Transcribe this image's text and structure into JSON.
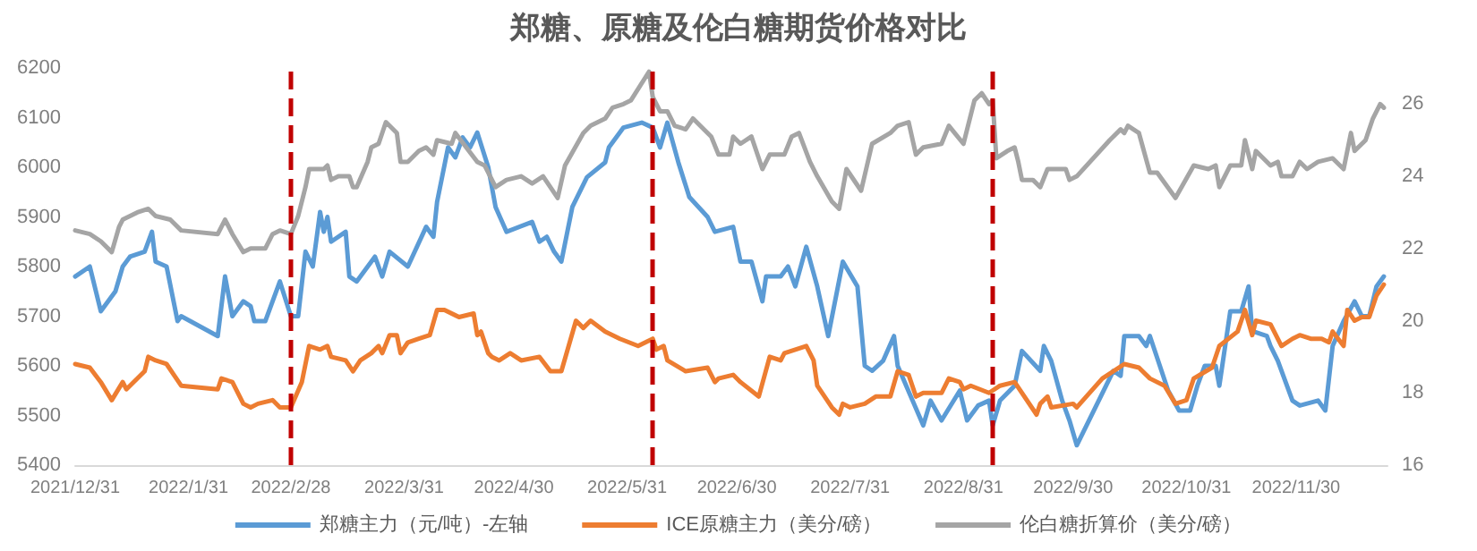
{
  "chart_data": {
    "type": "line",
    "title": "郑糖、原糖及伦白糖期货价格对比",
    "legend": "bottom",
    "line_style": "solid",
    "marker": "none",
    "xlim": [
      "2021-12-31",
      "2022-12-25"
    ],
    "xticks": [
      {
        "value": "2021-12-31",
        "label": "2021/12/31"
      },
      {
        "value": "2022-01-31",
        "label": "2022/1/31"
      },
      {
        "value": "2022-02-28",
        "label": "2022/2/28"
      },
      {
        "value": "2022-03-31",
        "label": "2022/3/31"
      },
      {
        "value": "2022-04-30",
        "label": "2022/4/30"
      },
      {
        "value": "2022-05-31",
        "label": "2022/5/31"
      },
      {
        "value": "2022-06-30",
        "label": "2022/6/30"
      },
      {
        "value": "2022-07-31",
        "label": "2022/7/31"
      },
      {
        "value": "2022-08-31",
        "label": "2022/8/31"
      },
      {
        "value": "2022-09-30",
        "label": "2022/9/30"
      },
      {
        "value": "2022-10-31",
        "label": "2022/10/31"
      },
      {
        "value": "2022-11-30",
        "label": "2022/11/30"
      }
    ],
    "ylim": [
      5400,
      6200
    ],
    "yticks": [
      5400,
      5500,
      5600,
      5700,
      5800,
      5900,
      6000,
      6100,
      6200
    ],
    "y2lim": [
      16,
      27
    ],
    "y2ticks": [
      16,
      18,
      20,
      22,
      24,
      26
    ],
    "ref_lines": [
      {
        "axis": "x",
        "value": "2022-02-28",
        "color": "#c00000",
        "line_style": "dashed"
      },
      {
        "axis": "x",
        "value": "2022-06-07",
        "color": "#c00000",
        "line_style": "dashed"
      },
      {
        "axis": "x",
        "value": "2022-09-08",
        "color": "#c00000",
        "line_style": "dashed"
      }
    ],
    "series": [
      {
        "name": "郑糖主力（元/吨）-左轴",
        "color": "#5b9bd5",
        "x": [
          "2021-12-31",
          "2022-01-04",
          "2022-01-07",
          "2022-01-11",
          "2022-01-13",
          "2022-01-15",
          "2022-01-19",
          "2022-01-21",
          "2022-01-22",
          "2022-01-25",
          "2022-01-28",
          "2022-01-29",
          "2022-02-08",
          "2022-02-09",
          "2022-02-10",
          "2022-02-12",
          "2022-02-15",
          "2022-02-17",
          "2022-02-18",
          "2022-02-21",
          "2022-02-25",
          "2022-02-28",
          "2022-03-02",
          "2022-03-04",
          "2022-03-06",
          "2022-03-08",
          "2022-03-09",
          "2022-03-10",
          "2022-03-11",
          "2022-03-15",
          "2022-03-16",
          "2022-03-18",
          "2022-03-23",
          "2022-03-25",
          "2022-03-27",
          "2022-04-01",
          "2022-04-06",
          "2022-04-08",
          "2022-04-09",
          "2022-04-12",
          "2022-04-14",
          "2022-04-16",
          "2022-04-18",
          "2022-04-20",
          "2022-04-23",
          "2022-04-25",
          "2022-04-28",
          "2022-05-05",
          "2022-05-07",
          "2022-05-09",
          "2022-05-11",
          "2022-05-13",
          "2022-05-16",
          "2022-05-20",
          "2022-05-25",
          "2022-05-26",
          "2022-05-30",
          "2022-06-04",
          "2022-06-07",
          "2022-06-09",
          "2022-06-11",
          "2022-06-14",
          "2022-06-17",
          "2022-06-22",
          "2022-06-24",
          "2022-06-29",
          "2022-07-01",
          "2022-07-04",
          "2022-07-07",
          "2022-07-08",
          "2022-07-12",
          "2022-07-14",
          "2022-07-16",
          "2022-07-19",
          "2022-07-22",
          "2022-07-25",
          "2022-07-29",
          "2022-08-02",
          "2022-08-04",
          "2022-08-06",
          "2022-08-09",
          "2022-08-12",
          "2022-08-13",
          "2022-08-20",
          "2022-08-22",
          "2022-08-25",
          "2022-08-30",
          "2022-09-01",
          "2022-09-04",
          "2022-09-07",
          "2022-09-08",
          "2022-09-10",
          "2022-09-14",
          "2022-09-16",
          "2022-09-21",
          "2022-09-22",
          "2022-09-24",
          "2022-09-27",
          "2022-09-29",
          "2022-10-01",
          "2022-10-11",
          "2022-10-13",
          "2022-10-14",
          "2022-10-18",
          "2022-10-20",
          "2022-10-21",
          "2022-10-26",
          "2022-10-29",
          "2022-11-01",
          "2022-11-03",
          "2022-11-05",
          "2022-11-08",
          "2022-11-09",
          "2022-11-12",
          "2022-11-15",
          "2022-11-17",
          "2022-11-18",
          "2022-11-22",
          "2022-11-23",
          "2022-11-25",
          "2022-11-29",
          "2022-12-01",
          "2022-12-06",
          "2022-12-08",
          "2022-12-10",
          "2022-12-13",
          "2022-12-16",
          "2022-12-18",
          "2022-12-20",
          "2022-12-22",
          "2022-12-24"
        ],
        "values": [
          5780,
          5800,
          5710,
          5750,
          5800,
          5820,
          5830,
          5870,
          5810,
          5800,
          5690,
          5700,
          5660,
          5720,
          5780,
          5700,
          5730,
          5720,
          5690,
          5690,
          5770,
          5700,
          5700,
          5830,
          5800,
          5910,
          5870,
          5900,
          5850,
          5870,
          5780,
          5770,
          5820,
          5780,
          5830,
          5800,
          5880,
          5860,
          5930,
          6040,
          6020,
          6060,
          6040,
          6070,
          6000,
          5920,
          5870,
          5890,
          5850,
          5860,
          5830,
          5810,
          5920,
          5980,
          6010,
          6040,
          6080,
          6090,
          6080,
          6040,
          6090,
          6010,
          5940,
          5900,
          5870,
          5880,
          5810,
          5810,
          5730,
          5780,
          5780,
          5800,
          5760,
          5840,
          5760,
          5660,
          5810,
          5760,
          5600,
          5590,
          5610,
          5660,
          5600,
          5480,
          5530,
          5490,
          5550,
          5490,
          5520,
          5530,
          5480,
          5530,
          5560,
          5630,
          5590,
          5640,
          5610,
          5530,
          5490,
          5440,
          5590,
          5580,
          5660,
          5660,
          5640,
          5660,
          5550,
          5510,
          5510,
          5560,
          5600,
          5600,
          5560,
          5710,
          5710,
          5760,
          5670,
          5660,
          5640,
          5610,
          5530,
          5520,
          5530,
          5510,
          5640,
          5690,
          5730,
          5700,
          5700,
          5760,
          5780
        ]
      },
      {
        "name": "ICE原糖主力（美分/磅）",
        "color": "#ed7d31",
        "axis": "y2",
        "x": [
          "2021-12-31",
          "2022-01-04",
          "2022-01-07",
          "2022-01-10",
          "2022-01-13",
          "2022-01-14",
          "2022-01-19",
          "2022-01-20",
          "2022-01-22",
          "2022-01-25",
          "2022-01-27",
          "2022-01-29",
          "2022-02-08",
          "2022-02-09",
          "2022-02-12",
          "2022-02-15",
          "2022-02-17",
          "2022-02-19",
          "2022-02-23",
          "2022-02-25",
          "2022-02-28",
          "2022-03-03",
          "2022-03-05",
          "2022-03-08",
          "2022-03-10",
          "2022-03-11",
          "2022-03-15",
          "2022-03-17",
          "2022-03-19",
          "2022-03-22",
          "2022-03-24",
          "2022-03-25",
          "2022-03-27",
          "2022-03-29",
          "2022-03-30",
          "2022-04-01",
          "2022-04-04",
          "2022-04-07",
          "2022-04-09",
          "2022-04-11",
          "2022-04-15",
          "2022-04-19",
          "2022-04-20",
          "2022-04-21",
          "2022-04-23",
          "2022-04-24",
          "2022-04-26",
          "2022-04-29",
          "2022-05-02",
          "2022-05-07",
          "2022-05-10",
          "2022-05-13",
          "2022-05-15",
          "2022-05-17",
          "2022-05-19",
          "2022-05-21",
          "2022-05-25",
          "2022-05-27",
          "2022-05-29",
          "2022-06-03",
          "2022-06-07",
          "2022-06-08",
          "2022-06-10",
          "2022-06-11",
          "2022-06-16",
          "2022-06-22",
          "2022-06-24",
          "2022-06-25",
          "2022-06-29",
          "2022-07-01",
          "2022-07-06",
          "2022-07-09",
          "2022-07-12",
          "2022-07-13",
          "2022-07-16",
          "2022-07-19",
          "2022-07-21",
          "2022-07-22",
          "2022-07-26",
          "2022-07-28",
          "2022-07-29",
          "2022-07-31",
          "2022-08-04",
          "2022-08-07",
          "2022-08-11",
          "2022-08-13",
          "2022-08-16",
          "2022-08-18",
          "2022-08-20",
          "2022-08-25",
          "2022-08-27",
          "2022-08-30",
          "2022-08-31",
          "2022-09-02",
          "2022-09-07",
          "2022-09-10",
          "2022-09-14",
          "2022-09-20",
          "2022-09-21",
          "2022-09-23",
          "2022-09-24",
          "2022-09-30",
          "2022-10-01",
          "2022-10-08",
          "2022-10-14",
          "2022-10-18",
          "2022-10-21",
          "2022-10-25",
          "2022-10-28",
          "2022-10-31",
          "2022-11-02",
          "2022-11-07",
          "2022-11-09",
          "2022-11-14",
          "2022-11-16",
          "2022-11-18",
          "2022-11-19",
          "2022-11-23",
          "2022-11-26",
          "2022-11-29",
          "2022-12-01",
          "2022-12-04",
          "2022-12-07",
          "2022-12-09",
          "2022-12-10",
          "2022-12-13",
          "2022-12-14",
          "2022-12-16",
          "2022-12-18",
          "2022-12-20",
          "2022-12-22",
          "2022-12-24"
        ],
        "values": [
          18.8,
          18.7,
          18.3,
          17.8,
          18.3,
          18.1,
          18.6,
          19.0,
          18.9,
          18.8,
          18.5,
          18.2,
          18.1,
          18.4,
          18.3,
          17.7,
          17.6,
          17.7,
          17.8,
          17.6,
          17.6,
          18.3,
          19.3,
          19.2,
          19.3,
          19.0,
          18.9,
          18.6,
          18.9,
          19.1,
          19.3,
          19.1,
          19.6,
          19.6,
          19.1,
          19.4,
          19.5,
          19.6,
          20.3,
          20.3,
          20.1,
          20.2,
          19.6,
          19.7,
          19.1,
          19.0,
          18.9,
          19.1,
          18.9,
          19.0,
          18.6,
          18.6,
          19.3,
          20.0,
          19.8,
          20.0,
          19.7,
          19.6,
          19.5,
          19.3,
          19.5,
          19.2,
          19.3,
          18.9,
          18.6,
          18.7,
          18.3,
          18.4,
          18.5,
          18.3,
          17.9,
          19.0,
          18.9,
          19.1,
          19.2,
          19.3,
          18.9,
          18.2,
          17.6,
          17.4,
          17.7,
          17.6,
          17.7,
          17.9,
          17.9,
          18.6,
          18.5,
          17.9,
          18.0,
          18.0,
          18.4,
          18.3,
          18.1,
          18.2,
          18.0,
          18.2,
          18.3,
          17.4,
          17.7,
          17.9,
          17.6,
          17.7,
          17.6,
          18.4,
          18.8,
          18.7,
          18.4,
          18.2,
          17.7,
          17.8,
          18.4,
          18.7,
          19.3,
          19.7,
          20.3,
          19.6,
          20.0,
          19.9,
          19.3,
          19.5,
          19.6,
          19.5,
          19.5,
          19.4,
          19.7,
          19.3,
          20.3,
          20.0,
          20.1,
          20.1,
          20.7,
          21.0
        ]
      },
      {
        "name": "伦白糖折算价（美分/磅）",
        "color": "#a5a5a5",
        "axis": "y2",
        "x": [
          "2021-12-31",
          "2022-01-04",
          "2022-01-07",
          "2022-01-10",
          "2022-01-12",
          "2022-01-13",
          "2022-01-17",
          "2022-01-20",
          "2022-01-22",
          "2022-01-26",
          "2022-01-29",
          "2022-02-08",
          "2022-02-10",
          "2022-02-12",
          "2022-02-15",
          "2022-02-17",
          "2022-02-21",
          "2022-02-23",
          "2022-02-25",
          "2022-02-28",
          "2022-03-02",
          "2022-03-04",
          "2022-03-05",
          "2022-03-09",
          "2022-03-10",
          "2022-03-11",
          "2022-03-13",
          "2022-03-16",
          "2022-03-17",
          "2022-03-18",
          "2022-03-21",
          "2022-03-22",
          "2022-03-24",
          "2022-03-26",
          "2022-03-29",
          "2022-03-30",
          "2022-04-01",
          "2022-04-04",
          "2022-04-06",
          "2022-04-08",
          "2022-04-09",
          "2022-04-13",
          "2022-04-14",
          "2022-04-20",
          "2022-04-22",
          "2022-04-25",
          "2022-04-28",
          "2022-05-02",
          "2022-05-05",
          "2022-05-08",
          "2022-05-12",
          "2022-05-14",
          "2022-05-19",
          "2022-05-21",
          "2022-05-25",
          "2022-05-27",
          "2022-05-30",
          "2022-06-01",
          "2022-06-06",
          "2022-06-07",
          "2022-06-09",
          "2022-06-11",
          "2022-06-13",
          "2022-06-16",
          "2022-06-18",
          "2022-06-23",
          "2022-06-25",
          "2022-06-28",
          "2022-06-29",
          "2022-07-01",
          "2022-07-04",
          "2022-07-07",
          "2022-07-09",
          "2022-07-13",
          "2022-07-15",
          "2022-07-17",
          "2022-07-20",
          "2022-07-22",
          "2022-07-26",
          "2022-07-28",
          "2022-07-30",
          "2022-08-03",
          "2022-08-06",
          "2022-08-11",
          "2022-08-13",
          "2022-08-16",
          "2022-08-18",
          "2022-08-20",
          "2022-08-25",
          "2022-08-27",
          "2022-08-31",
          "2022-09-03",
          "2022-09-05",
          "2022-09-07",
          "2022-09-08",
          "2022-09-09",
          "2022-09-12",
          "2022-09-14",
          "2022-09-15",
          "2022-09-16",
          "2022-09-19",
          "2022-09-21",
          "2022-09-23",
          "2022-09-28",
          "2022-09-29",
          "2022-10-01",
          "2022-10-10",
          "2022-10-13",
          "2022-10-14",
          "2022-10-15",
          "2022-10-18",
          "2022-10-21",
          "2022-10-23",
          "2022-10-28",
          "2022-11-02",
          "2022-11-06",
          "2022-11-08",
          "2022-11-09",
          "2022-11-12",
          "2022-11-15",
          "2022-11-16",
          "2022-11-18",
          "2022-11-19",
          "2022-11-23",
          "2022-11-25",
          "2022-11-26",
          "2022-11-29",
          "2022-12-01",
          "2022-12-03",
          "2022-12-06",
          "2022-12-10",
          "2022-12-13",
          "2022-12-15",
          "2022-12-16",
          "2022-12-19",
          "2022-12-21",
          "2022-12-23",
          "2022-12-24"
        ],
        "values": [
          22.5,
          22.4,
          22.2,
          21.9,
          22.6,
          22.8,
          23.0,
          23.1,
          22.9,
          22.8,
          22.5,
          22.4,
          22.8,
          22.4,
          21.9,
          22.0,
          22.0,
          22.4,
          22.5,
          22.4,
          22.9,
          23.7,
          24.2,
          24.2,
          24.3,
          23.9,
          24.0,
          24.0,
          23.7,
          23.7,
          24.4,
          24.8,
          24.9,
          25.5,
          25.2,
          24.4,
          24.4,
          24.7,
          24.8,
          24.6,
          25.0,
          24.9,
          25.2,
          24.4,
          24.3,
          23.7,
          23.9,
          24.0,
          23.8,
          24.0,
          23.4,
          24.3,
          25.2,
          25.4,
          25.6,
          25.9,
          26.0,
          26.1,
          26.9,
          26.2,
          25.8,
          25.8,
          25.4,
          25.3,
          25.6,
          25.1,
          24.6,
          24.6,
          25.1,
          24.9,
          25.1,
          24.2,
          24.6,
          24.6,
          25.1,
          25.2,
          24.4,
          24.0,
          23.3,
          23.1,
          24.2,
          23.6,
          24.9,
          25.2,
          25.4,
          25.5,
          24.6,
          24.8,
          24.9,
          25.4,
          24.9,
          26.1,
          26.3,
          26.0,
          26.1,
          24.5,
          24.7,
          24.8,
          24.4,
          23.9,
          23.9,
          23.7,
          24.2,
          24.2,
          23.9,
          24.0,
          25.0,
          25.3,
          25.2,
          25.4,
          25.2,
          24.1,
          24.1,
          23.4,
          24.3,
          24.2,
          24.3,
          23.7,
          24.3,
          24.3,
          25.0,
          24.2,
          24.7,
          24.3,
          24.4,
          24.0,
          24.0,
          24.4,
          24.2,
          24.4,
          24.5,
          24.2,
          25.2,
          24.7,
          25.0,
          25.6,
          26.0,
          25.9
        ]
      }
    ]
  }
}
